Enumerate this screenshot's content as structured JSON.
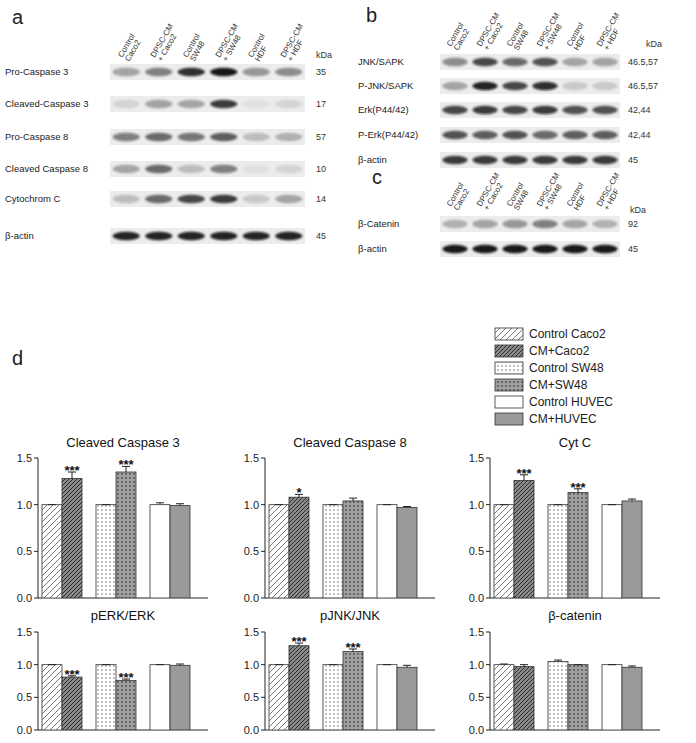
{
  "blots": [
    {
      "label": "a",
      "kda_title": "kDa",
      "header": [
        [
          "Control",
          "Caco2"
        ],
        [
          "DPSC-CM",
          "+ Caco2"
        ],
        [
          "Control",
          "SW48"
        ],
        [
          "DPSC-CM",
          "+ SW48"
        ],
        [
          "Control",
          "HDF"
        ],
        [
          "DPSC-CM",
          "+ HDF"
        ]
      ],
      "rows": [
        {
          "name": "Pro-Caspase 3",
          "kda": "35",
          "intensity": [
            0.35,
            0.5,
            0.85,
            0.95,
            0.4,
            0.45
          ]
        },
        {
          "name": "Cleaved-Caspase 3",
          "kda": "17",
          "intensity": [
            0.1,
            0.35,
            0.3,
            0.8,
            0.05,
            0.1
          ]
        },
        {
          "name": "Pro-Caspase 8",
          "kda": "57",
          "intensity": [
            0.5,
            0.6,
            0.55,
            0.65,
            0.2,
            0.25
          ]
        },
        {
          "name": "Cleaved Caspase 8",
          "kda": "10",
          "intensity": [
            0.3,
            0.6,
            0.2,
            0.5,
            0.05,
            0.1
          ]
        },
        {
          "name": "Cytochrom C",
          "kda": "14",
          "intensity": [
            0.2,
            0.6,
            0.75,
            0.8,
            0.15,
            0.3
          ]
        },
        {
          "name": "β-actin",
          "kda": "45",
          "intensity": [
            0.9,
            0.9,
            0.9,
            0.9,
            0.9,
            0.9
          ]
        }
      ]
    },
    {
      "label": "b",
      "kda_title": "kDa",
      "header": [
        [
          "Control",
          "Caco2"
        ],
        [
          "DPSC-CM",
          "+ Caco2"
        ],
        [
          "Control",
          "SW48"
        ],
        [
          "DPSC-CM",
          "+ SW48"
        ],
        [
          "Control",
          "HDF"
        ],
        [
          "DPSC-CM",
          "+ HDF"
        ]
      ],
      "rows": [
        {
          "name": "JNK/SAPK",
          "kda": "46.5,57",
          "intensity": [
            0.45,
            0.75,
            0.6,
            0.7,
            0.3,
            0.35
          ]
        },
        {
          "name": "P-JNK/SAPK",
          "kda": "46.5,57",
          "intensity": [
            0.3,
            0.9,
            0.75,
            0.85,
            0.15,
            0.15
          ]
        },
        {
          "name": "Erk(P44/42)",
          "kda": "42,44",
          "intensity": [
            0.75,
            0.8,
            0.75,
            0.8,
            0.7,
            0.7
          ]
        },
        {
          "name": "P-Erk(P44/42)",
          "kda": "42,44",
          "intensity": [
            0.7,
            0.65,
            0.7,
            0.6,
            0.65,
            0.65
          ]
        },
        {
          "name": "β-actin",
          "kda": "45",
          "intensity": [
            0.8,
            0.8,
            0.8,
            0.8,
            0.8,
            0.8
          ]
        }
      ]
    },
    {
      "label": "c",
      "kda_title": "kDa",
      "header": [
        [
          "Control",
          "Caco2"
        ],
        [
          "DPSC-CM",
          "+ Caco2"
        ],
        [
          "Control",
          "SW48"
        ],
        [
          "DPSC-CM",
          "+ SW48"
        ],
        [
          "Control",
          "HDF"
        ],
        [
          "DPSC-CM",
          "+ HDF"
        ]
      ],
      "rows": [
        {
          "name": "β-Catenin",
          "kda": "92",
          "intensity": [
            0.25,
            0.35,
            0.4,
            0.5,
            0.3,
            0.25
          ]
        },
        {
          "name": "β-actin",
          "kda": "45",
          "intensity": [
            0.95,
            0.95,
            0.95,
            0.95,
            0.95,
            0.95
          ]
        }
      ]
    }
  ],
  "panel_d_label": "d",
  "chart_data": [
    {
      "type": "bar",
      "title": "Cleaved Caspase 3",
      "categories": [
        null
      ],
      "ylim": [
        0,
        1.5
      ],
      "yticks": [
        {
          "value": 0,
          "label": "0.0"
        },
        {
          "value": 0.5,
          "label": "0.5"
        },
        {
          "value": 1,
          "label": "1.0"
        },
        {
          "value": 1.5,
          "label": "1.5"
        }
      ],
      "tick_labels": "y",
      "series": [
        {
          "color": "#ffffff",
          "values": [
            1
          ],
          "error": [
            0
          ]
        },
        {
          "color": "#8a8a8a",
          "values": [
            1.28
          ],
          "error": [
            0.07
          ],
          "annotations": [
            "***"
          ]
        },
        {
          "color": "#ffffff",
          "values": [
            1
          ],
          "error": [
            0
          ]
        },
        {
          "color": "#a0a0a0",
          "values": [
            1.35
          ],
          "error": [
            0.06
          ],
          "annotations": [
            "***"
          ]
        },
        {
          "color": "#ffffff",
          "values": [
            1
          ],
          "error": [
            0.02
          ]
        },
        {
          "color": "#9a9a9a",
          "values": [
            0.99
          ],
          "error": [
            0.02
          ]
        }
      ]
    },
    {
      "type": "bar",
      "title": "Cleaved Caspase 8",
      "categories": [
        null
      ],
      "ylim": [
        0,
        1.5
      ],
      "yticks": [
        {
          "value": 0,
          "label": "0.0"
        },
        {
          "value": 0.5,
          "label": "0.5"
        },
        {
          "value": 1,
          "label": "1.0"
        },
        {
          "value": 1.5,
          "label": "1.5"
        }
      ],
      "tick_labels": "y",
      "series": [
        {
          "color": "#ffffff",
          "values": [
            1
          ],
          "error": [
            0
          ]
        },
        {
          "color": "#8a8a8a",
          "values": [
            1.08
          ],
          "error": [
            0.03
          ],
          "annotations": [
            "*"
          ]
        },
        {
          "color": "#ffffff",
          "values": [
            1
          ],
          "error": [
            0
          ]
        },
        {
          "color": "#a0a0a0",
          "values": [
            1.04
          ],
          "error": [
            0.03
          ]
        },
        {
          "color": "#ffffff",
          "values": [
            1
          ],
          "error": [
            0
          ]
        },
        {
          "color": "#9a9a9a",
          "values": [
            0.97
          ],
          "error": [
            0.01
          ]
        }
      ]
    },
    {
      "type": "bar",
      "title": "Cyt C",
      "categories": [
        null
      ],
      "ylim": [
        0,
        1.5
      ],
      "yticks": [
        {
          "value": 0,
          "label": "0.0"
        },
        {
          "value": 0.5,
          "label": "0.5"
        },
        {
          "value": 1,
          "label": "1.0"
        },
        {
          "value": 1.5,
          "label": "1.5"
        }
      ],
      "tick_labels": "y",
      "legend": "top-right",
      "series": [
        {
          "name": "Control Caco2",
          "color": "#ffffff",
          "values": [
            1
          ],
          "error": [
            0
          ]
        },
        {
          "name": "CM+Caco2",
          "color": "#8a8a8a",
          "values": [
            1.26
          ],
          "error": [
            0.06
          ],
          "annotations": [
            "***"
          ]
        },
        {
          "name": "Control SW48",
          "color": "#ffffff",
          "values": [
            1
          ],
          "error": [
            0
          ]
        },
        {
          "name": "CM+SW48",
          "color": "#a0a0a0",
          "values": [
            1.13
          ],
          "error": [
            0.04
          ],
          "annotations": [
            "***"
          ]
        },
        {
          "name": "Control HUVEC",
          "color": "#ffffff",
          "values": [
            1
          ],
          "error": [
            0
          ]
        },
        {
          "name": "CM+HUVEC",
          "color": "#9a9a9a",
          "values": [
            1.04
          ],
          "error": [
            0.02
          ]
        }
      ]
    },
    {
      "type": "bar",
      "title": "pERK/ERK",
      "categories": [
        null
      ],
      "ylim": [
        0,
        1.5
      ],
      "yticks": [
        {
          "value": 0,
          "label": "0.0"
        },
        {
          "value": 0.5,
          "label": "0.5"
        },
        {
          "value": 1,
          "label": "1.0"
        },
        {
          "value": 1.5,
          "label": "1.5"
        }
      ],
      "tick_labels": "y",
      "series": [
        {
          "color": "#ffffff",
          "values": [
            1
          ],
          "error": [
            0
          ]
        },
        {
          "color": "#8a8a8a",
          "values": [
            0.81
          ],
          "error": [
            0.02
          ],
          "annotations": [
            "***"
          ]
        },
        {
          "color": "#ffffff",
          "values": [
            1
          ],
          "error": [
            0
          ]
        },
        {
          "color": "#a0a0a0",
          "values": [
            0.76
          ],
          "error": [
            0.02
          ],
          "annotations": [
            "***"
          ]
        },
        {
          "color": "#ffffff",
          "values": [
            1
          ],
          "error": [
            0
          ]
        },
        {
          "color": "#9a9a9a",
          "values": [
            0.99
          ],
          "error": [
            0.02
          ]
        }
      ]
    },
    {
      "type": "bar",
      "title": "pJNK/JNK",
      "categories": [
        null
      ],
      "ylim": [
        0,
        1.5
      ],
      "yticks": [
        {
          "value": 0,
          "label": "0.0"
        },
        {
          "value": 0.5,
          "label": "0.5"
        },
        {
          "value": 1,
          "label": "1.0"
        },
        {
          "value": 1.5,
          "label": "1.5"
        }
      ],
      "tick_labels": "y",
      "series": [
        {
          "color": "#ffffff",
          "values": [
            1
          ],
          "error": [
            0
          ]
        },
        {
          "color": "#8a8a8a",
          "values": [
            1.29
          ],
          "error": [
            0.04
          ],
          "annotations": [
            "***"
          ]
        },
        {
          "color": "#ffffff",
          "values": [
            1
          ],
          "error": [
            0
          ]
        },
        {
          "color": "#a0a0a0",
          "values": [
            1.2
          ],
          "error": [
            0.04
          ],
          "annotations": [
            "***"
          ]
        },
        {
          "color": "#ffffff",
          "values": [
            1
          ],
          "error": [
            0
          ]
        },
        {
          "color": "#9a9a9a",
          "values": [
            0.96
          ],
          "error": [
            0.03
          ]
        }
      ]
    },
    {
      "type": "bar",
      "title": "β-catenin",
      "categories": [
        null
      ],
      "ylim": [
        0,
        1.5
      ],
      "yticks": [
        {
          "value": 0,
          "label": "0.0"
        },
        {
          "value": 0.5,
          "label": "0.5"
        },
        {
          "value": 1,
          "label": "1.0"
        },
        {
          "value": 1.5,
          "label": "1.5"
        }
      ],
      "tick_labels": "y",
      "series": [
        {
          "color": "#ffffff",
          "values": [
            1
          ],
          "error": [
            0.01
          ]
        },
        {
          "color": "#8a8a8a",
          "values": [
            0.97
          ],
          "error": [
            0.03
          ]
        },
        {
          "color": "#ffffff",
          "values": [
            1.05
          ],
          "error": [
            0.02
          ]
        },
        {
          "color": "#a0a0a0",
          "values": [
            1
          ],
          "error": [
            0
          ]
        },
        {
          "color": "#ffffff",
          "values": [
            1
          ],
          "error": [
            0
          ]
        },
        {
          "color": "#9a9a9a",
          "values": [
            0.96
          ],
          "error": [
            0.02
          ]
        }
      ]
    }
  ]
}
